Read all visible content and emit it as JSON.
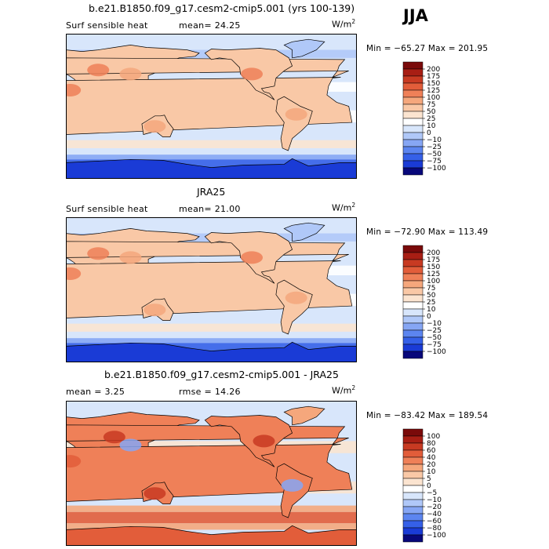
{
  "season": "JJA",
  "units_base": "W/m",
  "units_exp": "2",
  "palettes": {
    "abs": [
      "#08087a",
      "#1a3bd6",
      "#3560e8",
      "#5c85f0",
      "#86a6f4",
      "#b0c8f8",
      "#d8e6fb",
      "#ffffff",
      "#fbe4d0",
      "#f9c8a6",
      "#f5a77c",
      "#ef8058",
      "#e25d3a",
      "#c83a22",
      "#a81e14",
      "#7a0a0a"
    ],
    "diff": [
      "#08087a",
      "#1a3bd6",
      "#3560e8",
      "#5c85f0",
      "#86a6f4",
      "#b0c8f8",
      "#d8e6fb",
      "#ffffff",
      "#fbe4d0",
      "#f9c8a6",
      "#f5a77c",
      "#ef8058",
      "#e25d3a",
      "#c83a22",
      "#a81e14",
      "#7a0a0a"
    ]
  },
  "chart_data": [
    {
      "type": "heatmap",
      "title": "b.e21.B1850.f09_g17.cesm2-cmip5.001 (yrs 100-139)",
      "left_label": "Surf sensible heat",
      "stat_text": "mean=  24.25",
      "minmax_text": "Min = −65.27 Max = 201.95",
      "stats": {
        "mean": 24.25,
        "min": -65.27,
        "max": 201.95
      },
      "colorbar_ticks": [
        "200",
        "175",
        "150",
        "125",
        "100",
        "75",
        "50",
        "25",
        "10",
        "0",
        "−10",
        "−25",
        "−50",
        "−75",
        "−100"
      ]
    },
    {
      "type": "heatmap",
      "title": "JRA25",
      "left_label": "Surf sensible heat",
      "stat_text": "mean=  21.00",
      "minmax_text": "Min = −72.90 Max = 113.49",
      "stats": {
        "mean": 21.0,
        "min": -72.9,
        "max": 113.49
      },
      "colorbar_ticks": [
        "200",
        "175",
        "150",
        "125",
        "100",
        "75",
        "50",
        "25",
        "10",
        "0",
        "−10",
        "−25",
        "−50",
        "−75",
        "−100"
      ]
    },
    {
      "type": "heatmap",
      "title": "b.e21.B1850.f09_g17.cesm2-cmip5.001 - JRA25",
      "left_label": "mean =   3.25",
      "stat_text": "rmse =  14.26",
      "minmax_text": "Min = −83.42 Max = 189.54",
      "stats": {
        "mean": 3.25,
        "rmse": 14.26,
        "min": -83.42,
        "max": 189.54
      },
      "colorbar_ticks": [
        "100",
        "80",
        "60",
        "40",
        "20",
        "10",
        "5",
        "0",
        "−5",
        "−10",
        "−20",
        "−40",
        "−60",
        "−80",
        "−100"
      ]
    }
  ]
}
